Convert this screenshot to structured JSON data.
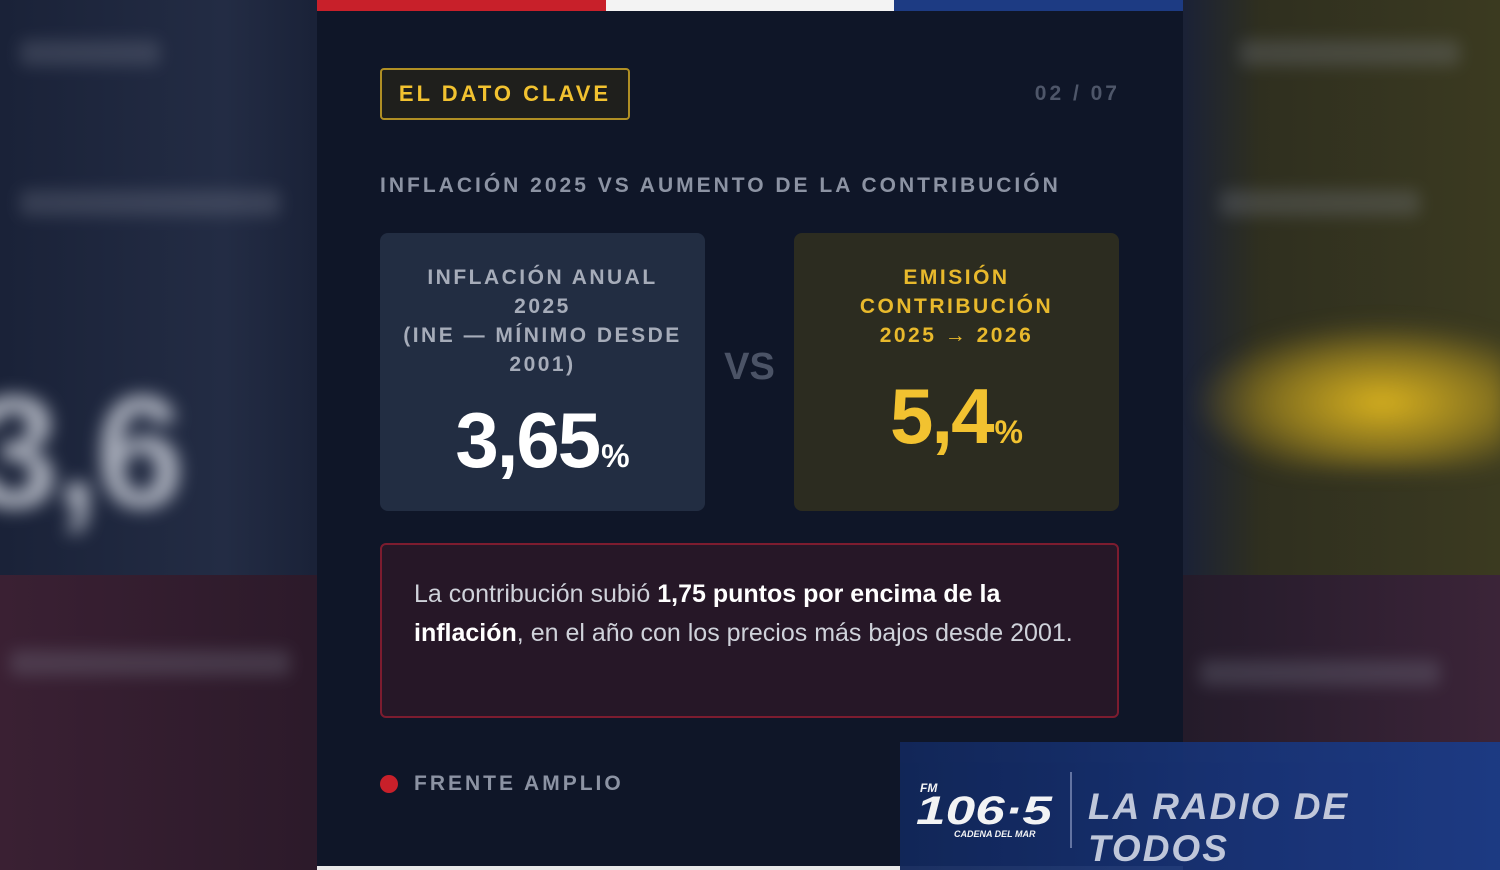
{
  "badge": "EL DATO CLAVE",
  "pager": "02 / 07",
  "subtitle": "INFLACIÓN 2025 VS AUMENTO DE LA CONTRIBUCIÓN",
  "left_box": {
    "label_lines": [
      "INFLACIÓN ANUAL",
      "2025",
      "(INE — MÍNIMO DESDE",
      "2001)"
    ],
    "value": "3,65",
    "unit": "%"
  },
  "vs": "VS",
  "right_box": {
    "label_lines": [
      "EMISIÓN",
      "CONTRIBUCIÓN",
      "2025 → 2026"
    ],
    "value": "5,4",
    "unit": "%"
  },
  "note": {
    "part1": "La contribución subió ",
    "bold": "1,75 puntos por encima de la inflación",
    "part2": ", en el año con los precios más bajos desde 2001."
  },
  "footer": "FRENTE AMPLIO",
  "radio": {
    "fm": "FM",
    "frequency": "106·5",
    "station": "CADENA DEL MAR",
    "slogan": "LA RADIO DE TODOS"
  },
  "colors": {
    "flag_red": "#c8202a",
    "flag_white": "#f3f3f3",
    "flag_blue": "#1d3b83",
    "accent_yellow": "#f2c230",
    "background": "#0f1628"
  }
}
